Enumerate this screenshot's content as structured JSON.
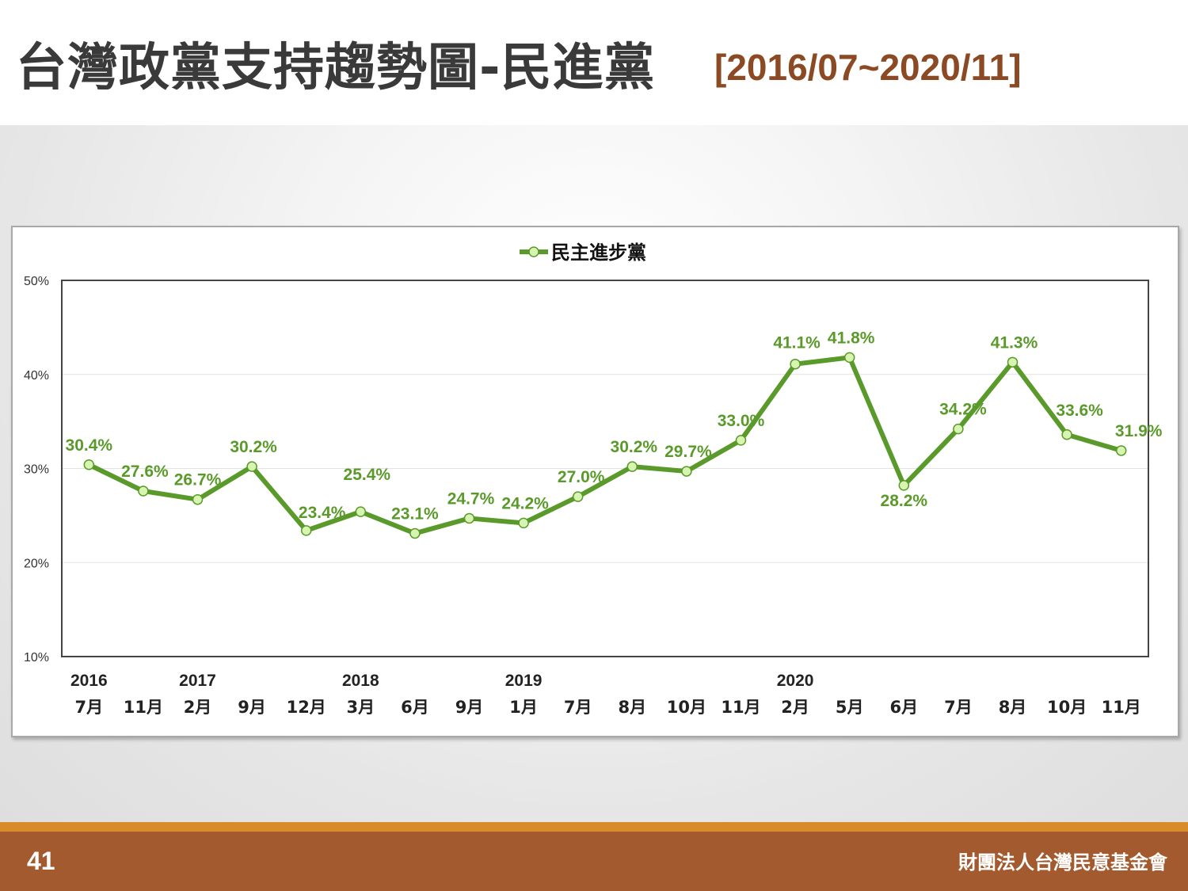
{
  "slide": {
    "title": "台灣政黨支持趨勢圖-民進黨",
    "subtitle": "[2016/07~2020/11]",
    "page_number": "41",
    "organization": "財團法人台灣民意基金會"
  },
  "colors": {
    "title": "#3a3a3a",
    "subtitle": "#8b4a24",
    "line": "#5a9a2a",
    "marker_fill": "#d7f5b0",
    "label": "#5a9a2a",
    "footer": "#a35a2e",
    "footer_accent": "#d98a2b"
  },
  "chart_data": {
    "type": "line",
    "legend_position": "top-center",
    "grid": true,
    "ylim": [
      10,
      50
    ],
    "y_ticks": [
      "10%",
      "20%",
      "30%",
      "40%",
      "50%"
    ],
    "y_tick_values": [
      10,
      20,
      30,
      40,
      50
    ],
    "categories": [
      "7月",
      "11月",
      "2月",
      "9月",
      "12月",
      "3月",
      "6月",
      "9月",
      "1月",
      "7月",
      "8月",
      "10月",
      "11月",
      "2月",
      "5月",
      "6月",
      "7月",
      "8月",
      "10月",
      "11月"
    ],
    "year_labels": [
      {
        "index": 0,
        "label": "2016"
      },
      {
        "index": 2,
        "label": "2017"
      },
      {
        "index": 5,
        "label": "2018"
      },
      {
        "index": 8,
        "label": "2019"
      },
      {
        "index": 13,
        "label": "2020"
      }
    ],
    "series": [
      {
        "name": "民主進步黨",
        "values": [
          30.4,
          27.6,
          26.7,
          30.2,
          23.4,
          25.4,
          23.1,
          24.7,
          24.2,
          27.0,
          30.2,
          29.7,
          33.0,
          41.1,
          41.8,
          28.2,
          34.2,
          41.3,
          33.6,
          31.9
        ],
        "labels": [
          "30.4%",
          "27.6%",
          "26.7%",
          "30.2%",
          "23.4%",
          "25.4%",
          "23.1%",
          "24.7%",
          "24.2%",
          "27.0%",
          "30.2%",
          "29.7%",
          "33.0%",
          "41.1%",
          "41.8%",
          "28.2%",
          "34.2%",
          "41.3%",
          "33.6%",
          "31.9%"
        ]
      }
    ]
  }
}
